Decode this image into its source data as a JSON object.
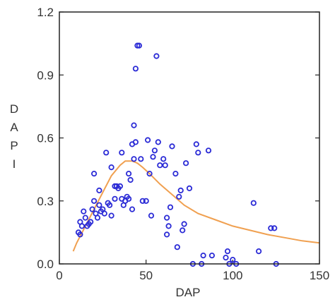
{
  "chart_data": {
    "type": "scatter",
    "xlabel": "DAP",
    "ylabel": "DAPI",
    "xlim": [
      0,
      150
    ],
    "ylim": [
      0,
      1.2
    ],
    "x_ticks": [
      "0",
      "50",
      "100",
      "150"
    ],
    "y_ticks": [
      "0.0",
      "0.3",
      "0.6",
      "0.9",
      "1.2"
    ],
    "grid": false,
    "legend": "none",
    "colors": {
      "points": "#2b2bd6",
      "curve": "#f0a050",
      "axes": "#222222"
    },
    "series": [
      {
        "kind": "points",
        "points": [
          [
            11,
            0.15
          ],
          [
            12,
            0.14
          ],
          [
            12,
            0.2
          ],
          [
            13,
            0.18
          ],
          [
            14,
            0.25
          ],
          [
            15,
            0.22
          ],
          [
            16,
            0.18
          ],
          [
            17,
            0.19
          ],
          [
            18,
            0.2
          ],
          [
            19,
            0.26
          ],
          [
            20,
            0.43
          ],
          [
            20,
            0.3
          ],
          [
            21,
            0.24
          ],
          [
            22,
            0.22
          ],
          [
            23,
            0.35
          ],
          [
            23,
            0.28
          ],
          [
            24,
            0.25
          ],
          [
            25,
            0.26
          ],
          [
            26,
            0.24
          ],
          [
            27,
            0.53
          ],
          [
            28,
            0.29
          ],
          [
            29,
            0.28
          ],
          [
            30,
            0.23
          ],
          [
            30,
            0.46
          ],
          [
            32,
            0.31
          ],
          [
            32,
            0.37
          ],
          [
            33,
            0.37
          ],
          [
            34,
            0.36
          ],
          [
            35,
            0.37
          ],
          [
            36,
            0.31
          ],
          [
            36,
            0.53
          ],
          [
            37,
            0.28
          ],
          [
            38,
            0.3
          ],
          [
            39,
            0.32
          ],
          [
            40,
            0.31
          ],
          [
            40,
            0.43
          ],
          [
            41,
            0.4
          ],
          [
            42,
            0.57
          ],
          [
            42,
            0.26
          ],
          [
            43,
            0.5
          ],
          [
            43,
            0.66
          ],
          [
            44,
            0.93
          ],
          [
            44,
            0.58
          ],
          [
            45,
            1.04
          ],
          [
            46,
            1.04
          ],
          [
            47,
            0.5
          ],
          [
            48,
            0.3
          ],
          [
            50,
            0.3
          ],
          [
            51,
            0.59
          ],
          [
            52,
            0.43
          ],
          [
            53,
            0.23
          ],
          [
            54,
            0.51
          ],
          [
            55,
            0.54
          ],
          [
            56,
            0.99
          ],
          [
            57,
            0.58
          ],
          [
            58,
            0.47
          ],
          [
            60,
            0.5
          ],
          [
            61,
            0.47
          ],
          [
            62,
            0.22
          ],
          [
            62,
            0.14
          ],
          [
            63,
            0.18
          ],
          [
            64,
            0.27
          ],
          [
            65,
            0.56
          ],
          [
            67,
            0.43
          ],
          [
            68,
            0.08
          ],
          [
            69,
            0.32
          ],
          [
            70,
            0.35
          ],
          [
            71,
            0.16
          ],
          [
            72,
            0.19
          ],
          [
            73,
            0.48
          ],
          [
            75,
            0.36
          ],
          [
            77,
            0.0
          ],
          [
            79,
            0.57
          ],
          [
            80,
            0.53
          ],
          [
            82,
            0.0
          ],
          [
            83,
            0.04
          ],
          [
            86,
            0.54
          ],
          [
            88,
            0.04
          ],
          [
            96,
            0.03
          ],
          [
            97,
            0.06
          ],
          [
            98,
            0.0
          ],
          [
            100,
            0.02
          ],
          [
            102,
            0.0
          ],
          [
            112,
            0.29
          ],
          [
            115,
            0.06
          ],
          [
            122,
            0.17
          ],
          [
            124,
            0.17
          ],
          [
            125,
            0.0
          ]
        ]
      },
      {
        "kind": "curve",
        "points": [
          [
            8,
            0.06
          ],
          [
            10,
            0.1
          ],
          [
            15,
            0.18
          ],
          [
            20,
            0.26
          ],
          [
            25,
            0.34
          ],
          [
            30,
            0.42
          ],
          [
            35,
            0.47
          ],
          [
            38,
            0.49
          ],
          [
            42,
            0.49
          ],
          [
            45,
            0.48
          ],
          [
            48,
            0.46
          ],
          [
            52,
            0.43
          ],
          [
            58,
            0.38
          ],
          [
            65,
            0.33
          ],
          [
            72,
            0.28
          ],
          [
            80,
            0.24
          ],
          [
            90,
            0.21
          ],
          [
            100,
            0.18
          ],
          [
            110,
            0.16
          ],
          [
            120,
            0.14
          ],
          [
            130,
            0.125
          ],
          [
            140,
            0.11
          ],
          [
            150,
            0.1
          ]
        ]
      }
    ]
  }
}
